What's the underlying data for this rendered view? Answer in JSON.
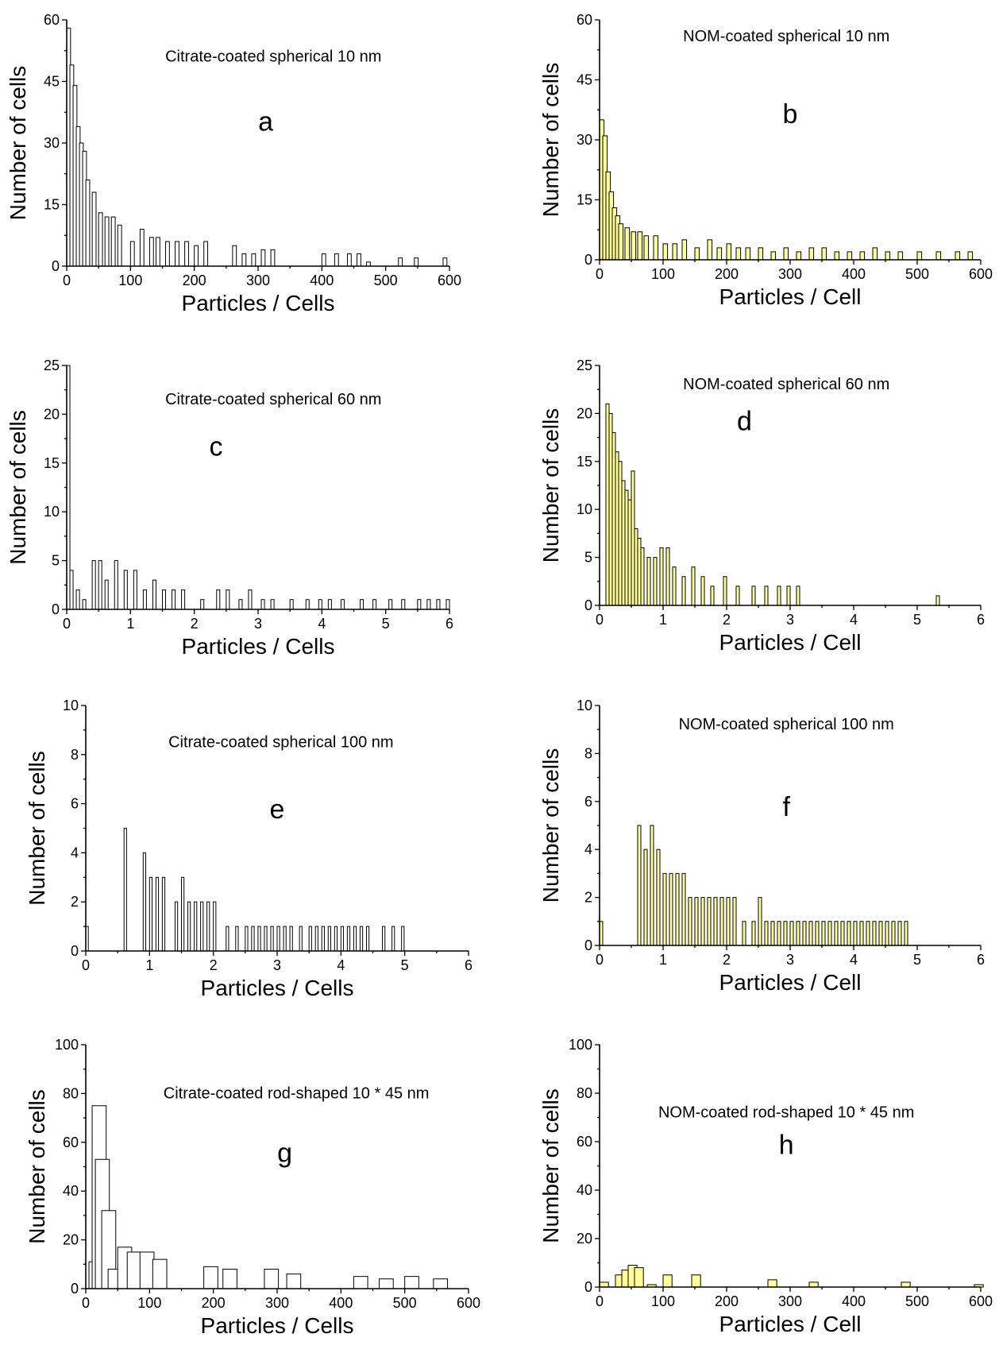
{
  "colors": {
    "citrate_fill": "#ffffff",
    "nom_fill": "#ffff99",
    "bar_stroke": "#000000"
  },
  "chart_data": [
    {
      "panel": "a",
      "type": "bar",
      "fill": "citrate_fill",
      "title": "Citrate-coated spherical 10 nm",
      "xlabel": "Particles / Cells",
      "ylabel": "Number of cells",
      "xlim": [
        0,
        600
      ],
      "ylim": [
        0,
        60
      ],
      "xticks": [
        0,
        100,
        200,
        300,
        400,
        500,
        600
      ],
      "yticks": [
        0,
        15,
        30,
        45,
        60
      ],
      "bin_width": 6,
      "x": [
        0,
        5,
        10,
        15,
        20,
        25,
        30,
        40,
        50,
        60,
        70,
        80,
        100,
        115,
        130,
        140,
        155,
        170,
        185,
        200,
        215,
        260,
        275,
        290,
        305,
        320,
        400,
        420,
        440,
        455,
        470,
        520,
        545,
        590
      ],
      "values": [
        58,
        49,
        44,
        34,
        30,
        28,
        21,
        18,
        13,
        12,
        12,
        10,
        6,
        9,
        7,
        7,
        6,
        6,
        6,
        5,
        6,
        5,
        3,
        3,
        4,
        4,
        3,
        3,
        3,
        3,
        1,
        2,
        2,
        2
      ]
    },
    {
      "panel": "b",
      "type": "bar",
      "fill": "nom_fill",
      "title": "NOM-coated spherical 10 nm",
      "xlabel": "Particles / Cell",
      "ylabel": "Number of cells",
      "xlim": [
        0,
        600
      ],
      "ylim": [
        0,
        60
      ],
      "xticks": [
        0,
        100,
        200,
        300,
        400,
        500,
        600
      ],
      "yticks": [
        0,
        15,
        30,
        45,
        60
      ],
      "bin_width": 7,
      "x": [
        0,
        5,
        10,
        15,
        20,
        25,
        30,
        40,
        50,
        60,
        70,
        85,
        100,
        115,
        130,
        150,
        170,
        185,
        200,
        215,
        230,
        250,
        270,
        290,
        310,
        330,
        350,
        370,
        390,
        410,
        430,
        450,
        470,
        500,
        530,
        560,
        580
      ],
      "values": [
        35,
        31,
        22,
        17,
        13,
        11,
        9,
        8,
        7,
        7,
        6,
        6,
        4,
        4,
        5,
        3,
        5,
        3,
        4,
        3,
        3,
        3,
        2,
        3,
        2,
        3,
        3,
        2,
        2,
        2,
        3,
        2,
        2,
        2,
        2,
        2,
        2
      ]
    },
    {
      "panel": "c",
      "type": "bar",
      "fill": "citrate_fill",
      "title": "Citrate-coated spherical 60 nm",
      "xlabel": "Particles / Cells",
      "ylabel": "Number of cells",
      "xlim": [
        0,
        6
      ],
      "ylim": [
        0,
        25
      ],
      "xticks": [
        0,
        1,
        2,
        3,
        4,
        5,
        6
      ],
      "yticks": [
        0,
        5,
        10,
        15,
        20,
        25
      ],
      "bin_width": 0.05,
      "x": [
        0,
        0.05,
        0.15,
        0.25,
        0.4,
        0.5,
        0.6,
        0.75,
        0.9,
        1.05,
        1.2,
        1.35,
        1.5,
        1.65,
        1.8,
        2.1,
        2.35,
        2.5,
        2.7,
        2.85,
        3.05,
        3.2,
        3.5,
        3.75,
        3.95,
        4.1,
        4.3,
        4.6,
        4.8,
        5.05,
        5.25,
        5.5,
        5.65,
        5.8,
        5.95
      ],
      "values": [
        25,
        4,
        2,
        1,
        5,
        5,
        3,
        5,
        4,
        4,
        2,
        3,
        2,
        2,
        2,
        1,
        2,
        2,
        1,
        2,
        1,
        1,
        1,
        1,
        1,
        1,
        1,
        1,
        1,
        1,
        1,
        1,
        1,
        1,
        1
      ]
    },
    {
      "panel": "d",
      "type": "bar",
      "fill": "nom_fill",
      "title": "NOM-coated spherical 60 nm",
      "xlabel": "Particles / Cell",
      "ylabel": "Number of cells",
      "xlim": [
        0,
        6
      ],
      "ylim": [
        0,
        25
      ],
      "xticks": [
        0,
        1,
        2,
        3,
        4,
        5,
        6
      ],
      "yticks": [
        0,
        5,
        10,
        15,
        20,
        25
      ],
      "bin_width": 0.05,
      "x": [
        0.1,
        0.15,
        0.2,
        0.25,
        0.3,
        0.35,
        0.4,
        0.45,
        0.5,
        0.55,
        0.6,
        0.65,
        0.75,
        0.85,
        0.95,
        1.05,
        1.15,
        1.3,
        1.45,
        1.6,
        1.75,
        1.95,
        2.15,
        2.4,
        2.6,
        2.8,
        2.95,
        3.1,
        5.3
      ],
      "values": [
        21,
        20,
        18,
        16,
        15,
        13,
        12,
        11,
        14,
        8,
        7,
        6,
        5,
        5,
        6,
        6,
        4,
        3,
        4,
        3,
        2,
        3,
        2,
        2,
        2,
        2,
        2,
        2,
        1
      ]
    },
    {
      "panel": "e",
      "type": "bar",
      "fill": "citrate_fill",
      "title": "Citrate-coated spherical 100 nm",
      "xlabel": "Particles / Cells",
      "ylabel": "Number of cells",
      "xlim": [
        0,
        6
      ],
      "ylim": [
        0,
        10
      ],
      "xticks": [
        0,
        1,
        2,
        3,
        4,
        5,
        6
      ],
      "yticks": [
        0,
        2,
        4,
        6,
        8,
        10
      ],
      "bin_width": 0.04,
      "x": [
        0,
        0.6,
        0.9,
        1.0,
        1.1,
        1.2,
        1.4,
        1.5,
        1.6,
        1.7,
        1.8,
        1.9,
        2.0,
        2.2,
        2.35,
        2.5,
        2.6,
        2.7,
        2.8,
        2.9,
        3.0,
        3.1,
        3.2,
        3.35,
        3.5,
        3.6,
        3.7,
        3.8,
        3.9,
        4.0,
        4.1,
        4.2,
        4.3,
        4.4,
        4.65,
        4.8,
        4.95
      ],
      "values": [
        1,
        5,
        4,
        3,
        3,
        3,
        2,
        3,
        2,
        2,
        2,
        2,
        2,
        1,
        1,
        1,
        1,
        1,
        1,
        1,
        1,
        1,
        1,
        1,
        1,
        1,
        1,
        1,
        1,
        1,
        1,
        1,
        1,
        1,
        1,
        1,
        1
      ]
    },
    {
      "panel": "f",
      "type": "bar",
      "fill": "nom_fill",
      "title": "NOM-coated spherical 100 nm",
      "xlabel": "Particles / Cell",
      "ylabel": "Number of cells",
      "xlim": [
        0,
        6
      ],
      "ylim": [
        0,
        10
      ],
      "xticks": [
        0,
        1,
        2,
        3,
        4,
        5,
        6
      ],
      "yticks": [
        0,
        2,
        4,
        6,
        8,
        10
      ],
      "bin_width": 0.05,
      "x": [
        0,
        0.6,
        0.7,
        0.8,
        0.9,
        1.0,
        1.1,
        1.2,
        1.3,
        1.4,
        1.5,
        1.6,
        1.7,
        1.8,
        1.9,
        2.0,
        2.1,
        2.25,
        2.4,
        2.5,
        2.6,
        2.7,
        2.8,
        2.9,
        3.0,
        3.1,
        3.2,
        3.3,
        3.4,
        3.5,
        3.6,
        3.7,
        3.8,
        3.9,
        4.0,
        4.1,
        4.2,
        4.3,
        4.4,
        4.5,
        4.6,
        4.7,
        4.8
      ],
      "values": [
        1,
        5,
        4,
        5,
        4,
        3,
        3,
        3,
        3,
        2,
        2,
        2,
        2,
        2,
        2,
        2,
        2,
        1,
        1,
        2,
        1,
        1,
        1,
        1,
        1,
        1,
        1,
        1,
        1,
        1,
        1,
        1,
        1,
        1,
        1,
        1,
        1,
        1,
        1,
        1,
        1,
        1,
        1
      ]
    },
    {
      "panel": "g",
      "type": "bar",
      "fill": "citrate_fill",
      "title": "Citrate-coated rod-shaped 10 * 45 nm",
      "xlabel": "Particles / Cells",
      "ylabel": "Number of cells",
      "xlim": [
        0,
        600
      ],
      "ylim": [
        0,
        100
      ],
      "xticks": [
        0,
        100,
        200,
        300,
        400,
        500,
        600
      ],
      "yticks": [
        0,
        20,
        40,
        60,
        80,
        100
      ],
      "bin_width": 22,
      "x": [
        5,
        10,
        15,
        25,
        35,
        50,
        65,
        85,
        105,
        185,
        215,
        280,
        315,
        420,
        460,
        500,
        545
      ],
      "values": [
        11,
        75,
        53,
        32,
        8,
        17,
        15,
        15,
        12,
        9,
        8,
        8,
        6,
        5,
        4,
        5,
        4
      ]
    },
    {
      "panel": "h",
      "type": "bar",
      "fill": "nom_fill",
      "title": "NOM-coated rod-shaped 10 * 45 nm",
      "xlabel": "Particles / Cell",
      "ylabel": "Number of cells",
      "xlim": [
        0,
        600
      ],
      "ylim": [
        0,
        100
      ],
      "xticks": [
        0,
        100,
        200,
        300,
        400,
        500,
        600
      ],
      "yticks": [
        0,
        20,
        40,
        60,
        80,
        100
      ],
      "bin_width": 14,
      "x": [
        0,
        25,
        35,
        45,
        55,
        75,
        100,
        145,
        265,
        330,
        475,
        590
      ],
      "values": [
        2,
        5,
        7,
        9,
        8,
        1,
        5,
        5,
        3,
        2,
        2,
        1
      ]
    }
  ]
}
